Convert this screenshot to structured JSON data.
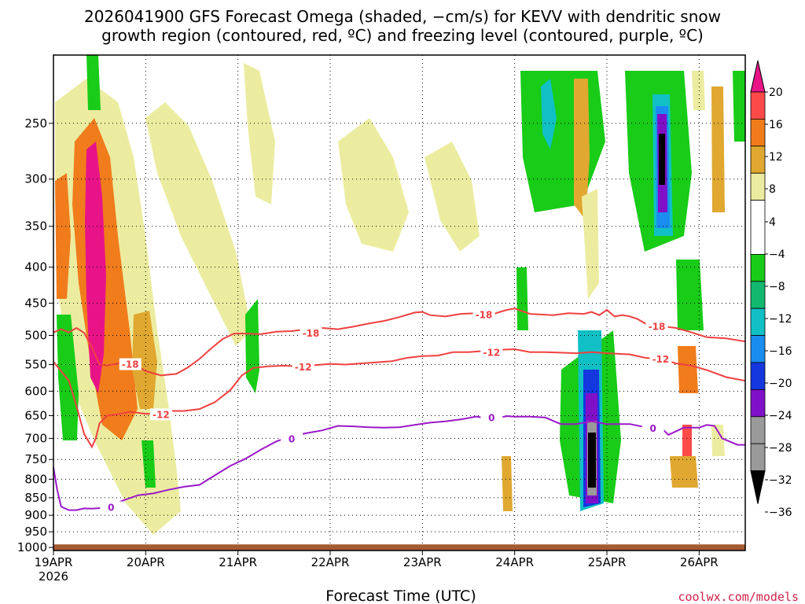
{
  "chart_data": {
    "type": "heatmap",
    "title": [
      "2026041900 GFS Forecast Omega (shaded, −cm/s) for KEVV with dendritic snow",
      "growth region (contoured, red, ºC) and freezing level (contoured, purple, ºC)"
    ],
    "xlabel": "Forecast Time (UTC)",
    "ylabel": "",
    "credit": "coolwx.com/models",
    "x_ticks": [
      {
        "t": 0,
        "label": "19APR",
        "sub": "2026"
      },
      {
        "t": 24,
        "label": "20APR",
        "sub": ""
      },
      {
        "t": 48,
        "label": "21APR",
        "sub": ""
      },
      {
        "t": 72,
        "label": "22APR",
        "sub": ""
      },
      {
        "t": 96,
        "label": "23APR",
        "sub": ""
      },
      {
        "t": 120,
        "label": "24APR",
        "sub": ""
      },
      {
        "t": 144,
        "label": "25APR",
        "sub": ""
      },
      {
        "t": 168,
        "label": "26APR",
        "sub": ""
      }
    ],
    "xlim": [
      0,
      180
    ],
    "y_ticks": [
      250,
      300,
      350,
      400,
      450,
      500,
      550,
      600,
      650,
      700,
      750,
      800,
      850,
      900,
      950,
      1000
    ],
    "ylim_hpa": [
      1010,
      200
    ],
    "ground_hpa": 990,
    "colorbar": {
      "tick_labels": [
        "20",
        "16",
        "12",
        "8",
        "4",
        "−4",
        "−8",
        "−12",
        "−16",
        "−20",
        "−24",
        "−28",
        "−32",
        "−36"
      ],
      "colors": [
        "#ffffff",
        "#18cc18",
        "#12b86e",
        "#10c0c4",
        "#1a8df0",
        "#1437e0",
        "#8010c8",
        "#9a9a9a",
        "#000000",
        "#e81487",
        "#ff4a4a",
        "#f07c1c",
        "#e0a830",
        "#ececa0"
      ]
    },
    "contours": [
      {
        "name": "-18",
        "color": "#f04040",
        "label": "-18",
        "points": [
          [
            0,
            495
          ],
          [
            2,
            490
          ],
          [
            4,
            495
          ],
          [
            6,
            488
          ],
          [
            8,
            496
          ],
          [
            10,
            520
          ],
          [
            12,
            550
          ],
          [
            14,
            552
          ],
          [
            16,
            549
          ],
          [
            18,
            546
          ],
          [
            21,
            550
          ],
          [
            24,
            562
          ],
          [
            28,
            570
          ],
          [
            32,
            567
          ],
          [
            35,
            555
          ],
          [
            38,
            540
          ],
          [
            41,
            522
          ],
          [
            44,
            506
          ],
          [
            47,
            497
          ],
          [
            50,
            497
          ],
          [
            54,
            498
          ],
          [
            58,
            494
          ],
          [
            62,
            493
          ],
          [
            66,
            490
          ],
          [
            70,
            488
          ],
          [
            74,
            490
          ],
          [
            78,
            486
          ],
          [
            82,
            481
          ],
          [
            86,
            477
          ],
          [
            90,
            471
          ],
          [
            94,
            464
          ],
          [
            96,
            463
          ],
          [
            98,
            468
          ],
          [
            102,
            470
          ],
          [
            106,
            466
          ],
          [
            110,
            465
          ],
          [
            114,
            467
          ],
          [
            118,
            460
          ],
          [
            120,
            458
          ],
          [
            124,
            466
          ],
          [
            130,
            468
          ],
          [
            134,
            465
          ],
          [
            138,
            466
          ],
          [
            140,
            463
          ],
          [
            142,
            468
          ],
          [
            144,
            460
          ],
          [
            146,
            470
          ],
          [
            148,
            468
          ],
          [
            150,
            470
          ],
          [
            152,
            474
          ],
          [
            156,
            488
          ],
          [
            158,
            485
          ],
          [
            162,
            488
          ],
          [
            166,
            495
          ],
          [
            170,
            503
          ],
          [
            175,
            505
          ],
          [
            180,
            510
          ]
        ],
        "labels": [
          {
            "t": 20,
            "p": 550,
            "text": "-18"
          },
          {
            "t": 67,
            "p": 497,
            "text": "-18"
          },
          {
            "t": 112,
            "p": 468,
            "text": "-18"
          },
          {
            "t": 157,
            "p": 486,
            "text": "-18"
          }
        ]
      },
      {
        "name": "-12",
        "color": "#f04040",
        "label": "-12",
        "points": [
          [
            0,
            545
          ],
          [
            2,
            562
          ],
          [
            4,
            580
          ],
          [
            6,
            630
          ],
          [
            8,
            690
          ],
          [
            10,
            720
          ],
          [
            11,
            700
          ],
          [
            12,
            666
          ],
          [
            14,
            650
          ],
          [
            16,
            648
          ],
          [
            20,
            642
          ],
          [
            24,
            646
          ],
          [
            26,
            646
          ],
          [
            28,
            648
          ],
          [
            30,
            640
          ],
          [
            34,
            640
          ],
          [
            38,
            636
          ],
          [
            42,
            622
          ],
          [
            46,
            598
          ],
          [
            49,
            570
          ],
          [
            52,
            556
          ],
          [
            56,
            553
          ],
          [
            60,
            552
          ],
          [
            64,
            553
          ],
          [
            68,
            551
          ],
          [
            72,
            549
          ],
          [
            76,
            550
          ],
          [
            80,
            548
          ],
          [
            84,
            546
          ],
          [
            88,
            544
          ],
          [
            92,
            538
          ],
          [
            96,
            535
          ],
          [
            100,
            534
          ],
          [
            104,
            528
          ],
          [
            108,
            528
          ],
          [
            112,
            526
          ],
          [
            116,
            524
          ],
          [
            120,
            523
          ],
          [
            124,
            528
          ],
          [
            128,
            528
          ],
          [
            132,
            529
          ],
          [
            136,
            530
          ],
          [
            140,
            528
          ],
          [
            144,
            530
          ],
          [
            150,
            532
          ],
          [
            154,
            538
          ],
          [
            158,
            540
          ],
          [
            162,
            548
          ],
          [
            166,
            552
          ],
          [
            170,
            560
          ],
          [
            175,
            573
          ],
          [
            180,
            580
          ]
        ],
        "labels": [
          {
            "t": 28,
            "p": 648,
            "text": "-12"
          },
          {
            "t": 65,
            "p": 555,
            "text": "-12"
          },
          {
            "t": 114,
            "p": 529,
            "text": "-12"
          },
          {
            "t": 158,
            "p": 541,
            "text": "-12"
          }
        ]
      },
      {
        "name": "0",
        "color": "#9a18c8",
        "label": "0",
        "points": [
          [
            0,
            770
          ],
          [
            1,
            830
          ],
          [
            2,
            875
          ],
          [
            4,
            885
          ],
          [
            6,
            885
          ],
          [
            8,
            880
          ],
          [
            10,
            881
          ],
          [
            14,
            878
          ],
          [
            18,
            858
          ],
          [
            22,
            843
          ],
          [
            26,
            838
          ],
          [
            30,
            828
          ],
          [
            34,
            820
          ],
          [
            38,
            815
          ],
          [
            42,
            790
          ],
          [
            46,
            766
          ],
          [
            50,
            748
          ],
          [
            54,
            726
          ],
          [
            58,
            707
          ],
          [
            62,
            695
          ],
          [
            66,
            688
          ],
          [
            70,
            682
          ],
          [
            74,
            672
          ],
          [
            78,
            673
          ],
          [
            82,
            675
          ],
          [
            86,
            676
          ],
          [
            90,
            675
          ],
          [
            94,
            670
          ],
          [
            98,
            665
          ],
          [
            102,
            662
          ],
          [
            106,
            658
          ],
          [
            110,
            652
          ],
          [
            114,
            657
          ],
          [
            118,
            651
          ],
          [
            120,
            652
          ],
          [
            124,
            652
          ],
          [
            128,
            654
          ],
          [
            132,
            668
          ],
          [
            136,
            668
          ],
          [
            140,
            662
          ],
          [
            144,
            668
          ],
          [
            148,
            668
          ],
          [
            150,
            668
          ],
          [
            154,
            675
          ],
          [
            158,
            675
          ],
          [
            160,
            692
          ],
          [
            164,
            676
          ],
          [
            168,
            676
          ],
          [
            170,
            670
          ],
          [
            172,
            672
          ],
          [
            174,
            700
          ],
          [
            178,
            715
          ],
          [
            180,
            715
          ]
        ],
        "labels": [
          {
            "t": 15,
            "p": 878,
            "text": "0"
          },
          {
            "t": 62,
            "p": 702,
            "text": "0"
          },
          {
            "t": 114,
            "p": 655,
            "text": "0"
          },
          {
            "t": 156,
            "p": 678,
            "text": "0"
          }
        ]
      }
    ]
  }
}
